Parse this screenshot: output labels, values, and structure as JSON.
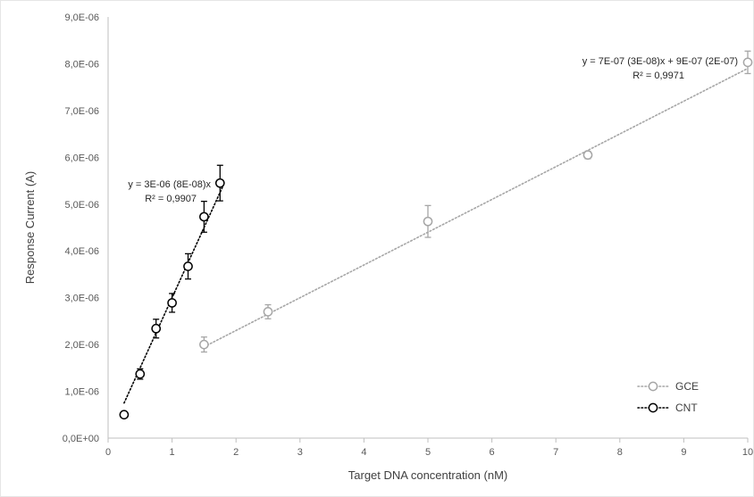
{
  "chart_data": {
    "type": "scatter",
    "xlabel": "Target DNA concentration (nM)",
    "ylabel": "Response Current (A)",
    "xlim": [
      0,
      10
    ],
    "ylim": [
      0,
      9e-06
    ],
    "x_ticks": [
      "0",
      "1",
      "2",
      "3",
      "4",
      "5",
      "6",
      "7",
      "8",
      "9",
      "10"
    ],
    "y_ticks": [
      "0,0E+00",
      "1,0E-06",
      "2,0E-06",
      "3,0E-06",
      "4,0E-06",
      "5,0E-06",
      "6,0E-06",
      "7,0E-06",
      "8,0E-06",
      "9,0E-06"
    ],
    "grid": false,
    "legend_position": "bottom-right",
    "series": [
      {
        "name": "GCE",
        "color": "#a6a6a6",
        "marker": "open-circle",
        "points": [
          {
            "x": 1.5,
            "y": 2e-06,
            "err": 1.6e-07
          },
          {
            "x": 2.5,
            "y": 2.7e-06,
            "err": 1.5e-07
          },
          {
            "x": 5.0,
            "y": 4.63e-06,
            "err": 3.4e-07
          },
          {
            "x": 7.5,
            "y": 6.05e-06,
            "err": 8e-08
          },
          {
            "x": 10.0,
            "y": 8.03e-06,
            "err": 2.4e-07
          }
        ],
        "trendline": {
          "style": "dotted",
          "slope": 7e-07,
          "intercept": 9e-07,
          "x_range": [
            1.5,
            10
          ],
          "equation": "y = 7E-07 (3E-08)x + 9E-07 (2E-07)",
          "r2": "R² = 0,9971"
        }
      },
      {
        "name": "CNT",
        "color": "#000000",
        "marker": "open-circle",
        "points": [
          {
            "x": 0.25,
            "y": 5e-07,
            "err": 6e-08
          },
          {
            "x": 0.5,
            "y": 1.37e-06,
            "err": 1.1e-07
          },
          {
            "x": 0.75,
            "y": 2.34e-06,
            "err": 2e-07
          },
          {
            "x": 1.0,
            "y": 2.89e-06,
            "err": 2e-07
          },
          {
            "x": 1.25,
            "y": 3.67e-06,
            "err": 2.7e-07
          },
          {
            "x": 1.5,
            "y": 4.73e-06,
            "err": 3.3e-07
          },
          {
            "x": 1.75,
            "y": 5.45e-06,
            "err": 3.8e-07
          }
        ],
        "trendline": {
          "style": "dotted",
          "slope": 3e-06,
          "intercept": 0,
          "x_range": [
            0.25,
            1.8
          ],
          "equation": "y = 3E-06 (8E-08)x",
          "r2": "R² = 0,9907"
        }
      }
    ]
  }
}
